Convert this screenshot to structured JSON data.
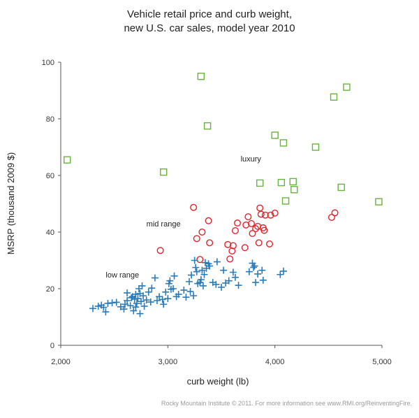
{
  "chart_data": {
    "type": "scatter",
    "title_lines": [
      "Vehicle retail price and curb weight,",
      "new U.S. car sales, model year 2010"
    ],
    "xlabel": "curb weight (lb)",
    "ylabel": "MSRP (thousand 2009 $)",
    "xlim": [
      2000,
      5000
    ],
    "ylim": [
      0,
      100
    ],
    "x_ticks": [
      2000,
      3000,
      4000,
      5000
    ],
    "x_tick_labels": [
      "2,000",
      "3,000",
      "4,000",
      "5,000"
    ],
    "y_ticks": [
      0,
      20,
      40,
      60,
      80,
      100
    ],
    "y_tick_labels": [
      "0",
      "20",
      "40",
      "60",
      "80",
      "100"
    ],
    "grid": false,
    "annotations": [
      {
        "text": "luxury",
        "x": 3680,
        "y": 65
      },
      {
        "text": "mid range",
        "x": 2800,
        "y": 42
      },
      {
        "text": "low range",
        "x": 2420,
        "y": 24
      }
    ],
    "series": [
      {
        "name": "luxury",
        "marker": "square",
        "color": "#6ab23e",
        "points": [
          [
            2060,
            65.5
          ],
          [
            2960,
            61.2
          ],
          [
            3310,
            95
          ],
          [
            3370,
            77.5
          ],
          [
            3860,
            57.3
          ],
          [
            4000,
            74.2
          ],
          [
            4060,
            57.5
          ],
          [
            4080,
            71.5
          ],
          [
            4100,
            51
          ],
          [
            4170,
            57.8
          ],
          [
            4180,
            55
          ],
          [
            4380,
            70
          ],
          [
            4550,
            87.7
          ],
          [
            4620,
            55.8
          ],
          [
            4670,
            91.2
          ],
          [
            4970,
            50.7
          ]
        ]
      },
      {
        "name": "mid range",
        "marker": "circle",
        "color": "#e2232a",
        "points": [
          [
            2930,
            33.5
          ],
          [
            3240,
            48.7
          ],
          [
            3270,
            37.7
          ],
          [
            3300,
            30.3
          ],
          [
            3320,
            40
          ],
          [
            3380,
            44
          ],
          [
            3390,
            36.2
          ],
          [
            3560,
            35.6
          ],
          [
            3580,
            30.5
          ],
          [
            3600,
            33.3
          ],
          [
            3610,
            35.2
          ],
          [
            3630,
            40.5
          ],
          [
            3650,
            43.2
          ],
          [
            3720,
            34.5
          ],
          [
            3730,
            42.5
          ],
          [
            3750,
            45.4
          ],
          [
            3780,
            43
          ],
          [
            3790,
            39.5
          ],
          [
            3820,
            41.2
          ],
          [
            3840,
            42
          ],
          [
            3850,
            36.2
          ],
          [
            3860,
            48.5
          ],
          [
            3870,
            46.3
          ],
          [
            3890,
            41.5
          ],
          [
            3900,
            40.6
          ],
          [
            3910,
            46
          ],
          [
            3950,
            35.8
          ],
          [
            3960,
            46
          ],
          [
            4000,
            46.7
          ],
          [
            4530,
            45.2
          ],
          [
            4560,
            46.8
          ]
        ]
      },
      {
        "name": "low range",
        "marker": "plus",
        "color": "#2a7ab8",
        "points": [
          [
            2300,
            13
          ],
          [
            2350,
            13.8
          ],
          [
            2380,
            14.2
          ],
          [
            2400,
            13.4
          ],
          [
            2420,
            11.8
          ],
          [
            2440,
            14.8
          ],
          [
            2480,
            15
          ],
          [
            2520,
            15.2
          ],
          [
            2560,
            13.6
          ],
          [
            2590,
            12.8
          ],
          [
            2600,
            14.5
          ],
          [
            2620,
            15.8
          ],
          [
            2620,
            18.5
          ],
          [
            2650,
            14
          ],
          [
            2660,
            16.8
          ],
          [
            2670,
            17.2
          ],
          [
            2680,
            12.2
          ],
          [
            2690,
            16.3
          ],
          [
            2700,
            18
          ],
          [
            2700,
            13.5
          ],
          [
            2710,
            14.8
          ],
          [
            2720,
            16.5
          ],
          [
            2730,
            20
          ],
          [
            2740,
            11.2
          ],
          [
            2740,
            18.3
          ],
          [
            2750,
            15.5
          ],
          [
            2760,
            21
          ],
          [
            2770,
            17.5
          ],
          [
            2780,
            13.8
          ],
          [
            2800,
            16
          ],
          [
            2820,
            18.8
          ],
          [
            2840,
            15.3
          ],
          [
            2850,
            20.2
          ],
          [
            2880,
            23.8
          ],
          [
            2900,
            15.8
          ],
          [
            2920,
            17.2
          ],
          [
            2950,
            16.2
          ],
          [
            2960,
            14.5
          ],
          [
            2980,
            18.8
          ],
          [
            3000,
            16.5
          ],
          [
            3010,
            21.8
          ],
          [
            3020,
            22.8
          ],
          [
            3030,
            19.8
          ],
          [
            3050,
            20
          ],
          [
            3060,
            24.5
          ],
          [
            3080,
            17.2
          ],
          [
            3100,
            18
          ],
          [
            3150,
            19.5
          ],
          [
            3170,
            17
          ],
          [
            3200,
            22.5
          ],
          [
            3210,
            19
          ],
          [
            3220,
            24.8
          ],
          [
            3240,
            17.5
          ],
          [
            3250,
            30
          ],
          [
            3260,
            27.5
          ],
          [
            3270,
            26
          ],
          [
            3280,
            21.8
          ],
          [
            3300,
            22.2
          ],
          [
            3310,
            23.2
          ],
          [
            3320,
            26.5
          ],
          [
            3330,
            21
          ],
          [
            3340,
            25
          ],
          [
            3350,
            29.2
          ],
          [
            3360,
            27.2
          ],
          [
            3380,
            28.8
          ],
          [
            3390,
            28
          ],
          [
            3420,
            22.2
          ],
          [
            3450,
            21.5
          ],
          [
            3460,
            29.5
          ],
          [
            3500,
            20.5
          ],
          [
            3520,
            26.5
          ],
          [
            3540,
            22
          ],
          [
            3570,
            22.8
          ],
          [
            3610,
            25.8
          ],
          [
            3630,
            24
          ],
          [
            3660,
            21.2
          ],
          [
            3760,
            26
          ],
          [
            3790,
            29
          ],
          [
            3800,
            27.5
          ],
          [
            3810,
            28
          ],
          [
            3820,
            22.2
          ],
          [
            3840,
            25.2
          ],
          [
            3880,
            26.5
          ],
          [
            3890,
            23
          ],
          [
            4050,
            25
          ],
          [
            4080,
            26.2
          ]
        ]
      }
    ]
  },
  "credit": "Rocky Mountain Institute © 2011. For more information see www.RMI.org/ReinventingFire."
}
